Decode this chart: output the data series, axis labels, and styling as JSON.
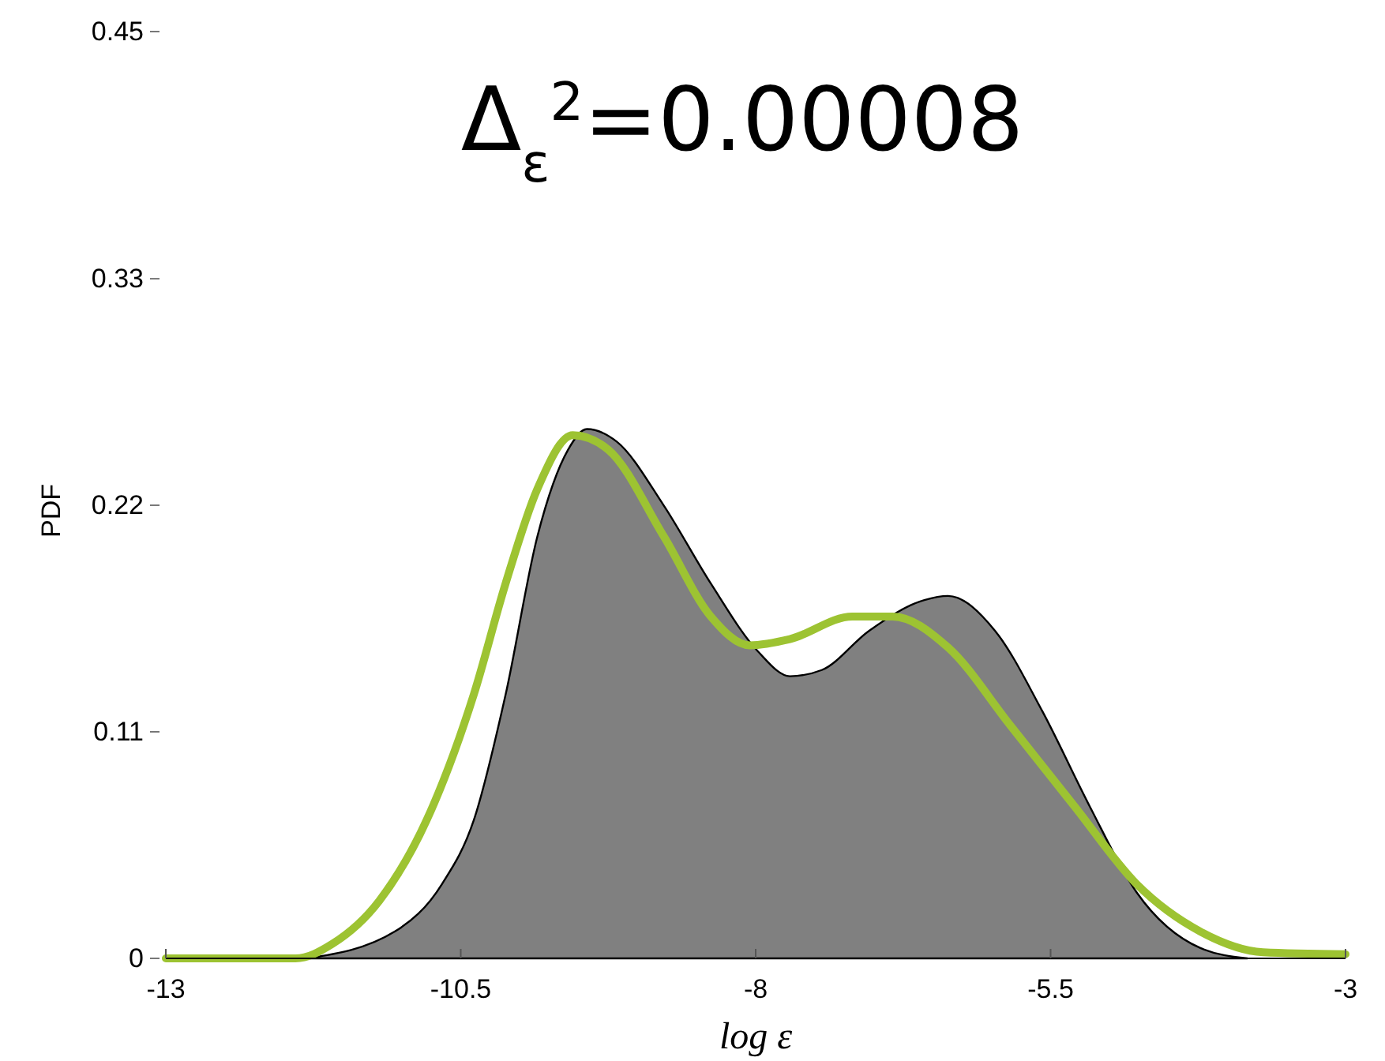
{
  "chart_data": {
    "type": "area",
    "title": "Δ$_{ε}$$^{2}$=0.00008",
    "xlabel": "log ε",
    "ylabel": "PDF",
    "xlim": [
      -13,
      -3
    ],
    "ylim": [
      0,
      0.45
    ],
    "xticks": [
      -13,
      -10.5,
      -8,
      -5.5,
      -3
    ],
    "yticks": [
      0,
      0.11,
      0.22,
      0.33,
      0.45
    ],
    "grid": false,
    "series": [
      {
        "color": "#808080",
        "x": [
          -11.8,
          -11.06,
          -10.66,
          -10.39,
          -10.12,
          -9.85,
          -9.59,
          -9.43,
          -9.18,
          -8.78,
          -8.38,
          -7.98,
          -7.71,
          -7.44,
          -7.04,
          -6.57,
          -6.37,
          -5.97,
          -5.57,
          -5.17,
          -4.77,
          -4.23,
          -3.83
        ],
        "values": [
          0,
          0.013,
          0.036,
          0.067,
          0.128,
          0.205,
          0.247,
          0.257,
          0.251,
          0.22,
          0.182,
          0.149,
          0.137,
          0.14,
          0.159,
          0.174,
          0.176,
          0.159,
          0.12,
          0.074,
          0.032,
          0.005,
          0
        ]
      },
      {
        "type": "line",
        "color": "#9dc332",
        "x": [
          -13,
          -11.9,
          -11.59,
          -11.19,
          -10.79,
          -10.39,
          -10.12,
          -9.85,
          -9.55,
          -9.25,
          -8.78,
          -8.38,
          -8.05,
          -7.71,
          -7.18,
          -6.84,
          -6.37,
          -5.84,
          -5.3,
          -4.77,
          -4.23,
          -3.7,
          -3
        ],
        "values": [
          0,
          0,
          0.007,
          0.028,
          0.067,
          0.128,
          0.182,
          0.228,
          0.254,
          0.247,
          0.205,
          0.166,
          0.152,
          0.155,
          0.166,
          0.166,
          0.151,
          0.113,
          0.074,
          0.036,
          0.013,
          0.003,
          0.002
        ]
      }
    ]
  }
}
